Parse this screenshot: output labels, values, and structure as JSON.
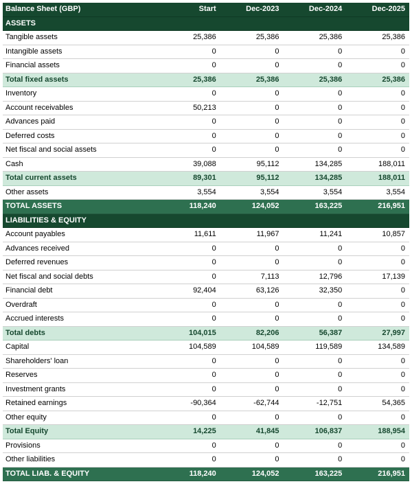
{
  "colors": {
    "header_bg": "#16482f",
    "header_fg": "#ffffff",
    "subtotal_bg": "#cfe9db",
    "subtotal_fg": "#16482f",
    "grand_bg": "#2e7050",
    "grand_fg": "#ffffff",
    "row_border": "#d0d0d0"
  },
  "columns": [
    "Balance Sheet (GBP)",
    "Start",
    "Dec-2023",
    "Dec-2024",
    "Dec-2025"
  ],
  "rows": [
    {
      "type": "section",
      "label": "ASSETS"
    },
    {
      "type": "data",
      "label": "Tangible assets",
      "values": [
        "25,386",
        "25,386",
        "25,386",
        "25,386"
      ]
    },
    {
      "type": "data",
      "label": "Intangible assets",
      "values": [
        "0",
        "0",
        "0",
        "0"
      ]
    },
    {
      "type": "data",
      "label": "Financial assets",
      "values": [
        "0",
        "0",
        "0",
        "0"
      ]
    },
    {
      "type": "subtotal",
      "label": "Total fixed assets",
      "values": [
        "25,386",
        "25,386",
        "25,386",
        "25,386"
      ]
    },
    {
      "type": "data",
      "label": "Inventory",
      "values": [
        "0",
        "0",
        "0",
        "0"
      ]
    },
    {
      "type": "data",
      "label": "Account receivables",
      "values": [
        "50,213",
        "0",
        "0",
        "0"
      ]
    },
    {
      "type": "data",
      "label": "Advances paid",
      "values": [
        "0",
        "0",
        "0",
        "0"
      ]
    },
    {
      "type": "data",
      "label": "Deferred costs",
      "values": [
        "0",
        "0",
        "0",
        "0"
      ]
    },
    {
      "type": "data",
      "label": "Net fiscal and social assets",
      "values": [
        "0",
        "0",
        "0",
        "0"
      ]
    },
    {
      "type": "data",
      "label": "Cash",
      "values": [
        "39,088",
        "95,112",
        "134,285",
        "188,011"
      ]
    },
    {
      "type": "subtotal",
      "label": "Total current assets",
      "values": [
        "89,301",
        "95,112",
        "134,285",
        "188,011"
      ]
    },
    {
      "type": "data",
      "label": "Other assets",
      "values": [
        "3,554",
        "3,554",
        "3,554",
        "3,554"
      ]
    },
    {
      "type": "grand",
      "label": "TOTAL ASSETS",
      "values": [
        "118,240",
        "124,052",
        "163,225",
        "216,951"
      ]
    },
    {
      "type": "section",
      "label": "LIABILITIES & EQUITY"
    },
    {
      "type": "data",
      "label": "Account payables",
      "values": [
        "11,611",
        "11,967",
        "11,241",
        "10,857"
      ]
    },
    {
      "type": "data",
      "label": "Advances received",
      "values": [
        "0",
        "0",
        "0",
        "0"
      ]
    },
    {
      "type": "data",
      "label": "Deferred revenues",
      "values": [
        "0",
        "0",
        "0",
        "0"
      ]
    },
    {
      "type": "data",
      "label": "Net fiscal and social debts",
      "values": [
        "0",
        "7,113",
        "12,796",
        "17,139"
      ]
    },
    {
      "type": "data",
      "label": "Financial debt",
      "values": [
        "92,404",
        "63,126",
        "32,350",
        "0"
      ]
    },
    {
      "type": "data",
      "label": "Overdraft",
      "values": [
        "0",
        "0",
        "0",
        "0"
      ]
    },
    {
      "type": "data",
      "label": "Accrued interests",
      "values": [
        "0",
        "0",
        "0",
        "0"
      ]
    },
    {
      "type": "subtotal",
      "label": "Total debts",
      "values": [
        "104,015",
        "82,206",
        "56,387",
        "27,997"
      ]
    },
    {
      "type": "data",
      "label": "Capital",
      "values": [
        "104,589",
        "104,589",
        "119,589",
        "134,589"
      ]
    },
    {
      "type": "data",
      "label": "Shareholders' loan",
      "values": [
        "0",
        "0",
        "0",
        "0"
      ]
    },
    {
      "type": "data",
      "label": "Reserves",
      "values": [
        "0",
        "0",
        "0",
        "0"
      ]
    },
    {
      "type": "data",
      "label": "Investment grants",
      "values": [
        "0",
        "0",
        "0",
        "0"
      ]
    },
    {
      "type": "data",
      "label": "Retained earnings",
      "values": [
        "-90,364",
        "-62,744",
        "-12,751",
        "54,365"
      ]
    },
    {
      "type": "data",
      "label": "Other equity",
      "values": [
        "0",
        "0",
        "0",
        "0"
      ]
    },
    {
      "type": "subtotal",
      "label": "Total Equity",
      "values": [
        "14,225",
        "41,845",
        "106,837",
        "188,954"
      ]
    },
    {
      "type": "data",
      "label": "Provisions",
      "values": [
        "0",
        "0",
        "0",
        "0"
      ]
    },
    {
      "type": "data",
      "label": "Other liabilities",
      "values": [
        "0",
        "0",
        "0",
        "0"
      ]
    },
    {
      "type": "grand",
      "label": "TOTAL LIAB. & EQUITY",
      "values": [
        "118,240",
        "124,052",
        "163,225",
        "216,951"
      ]
    }
  ]
}
